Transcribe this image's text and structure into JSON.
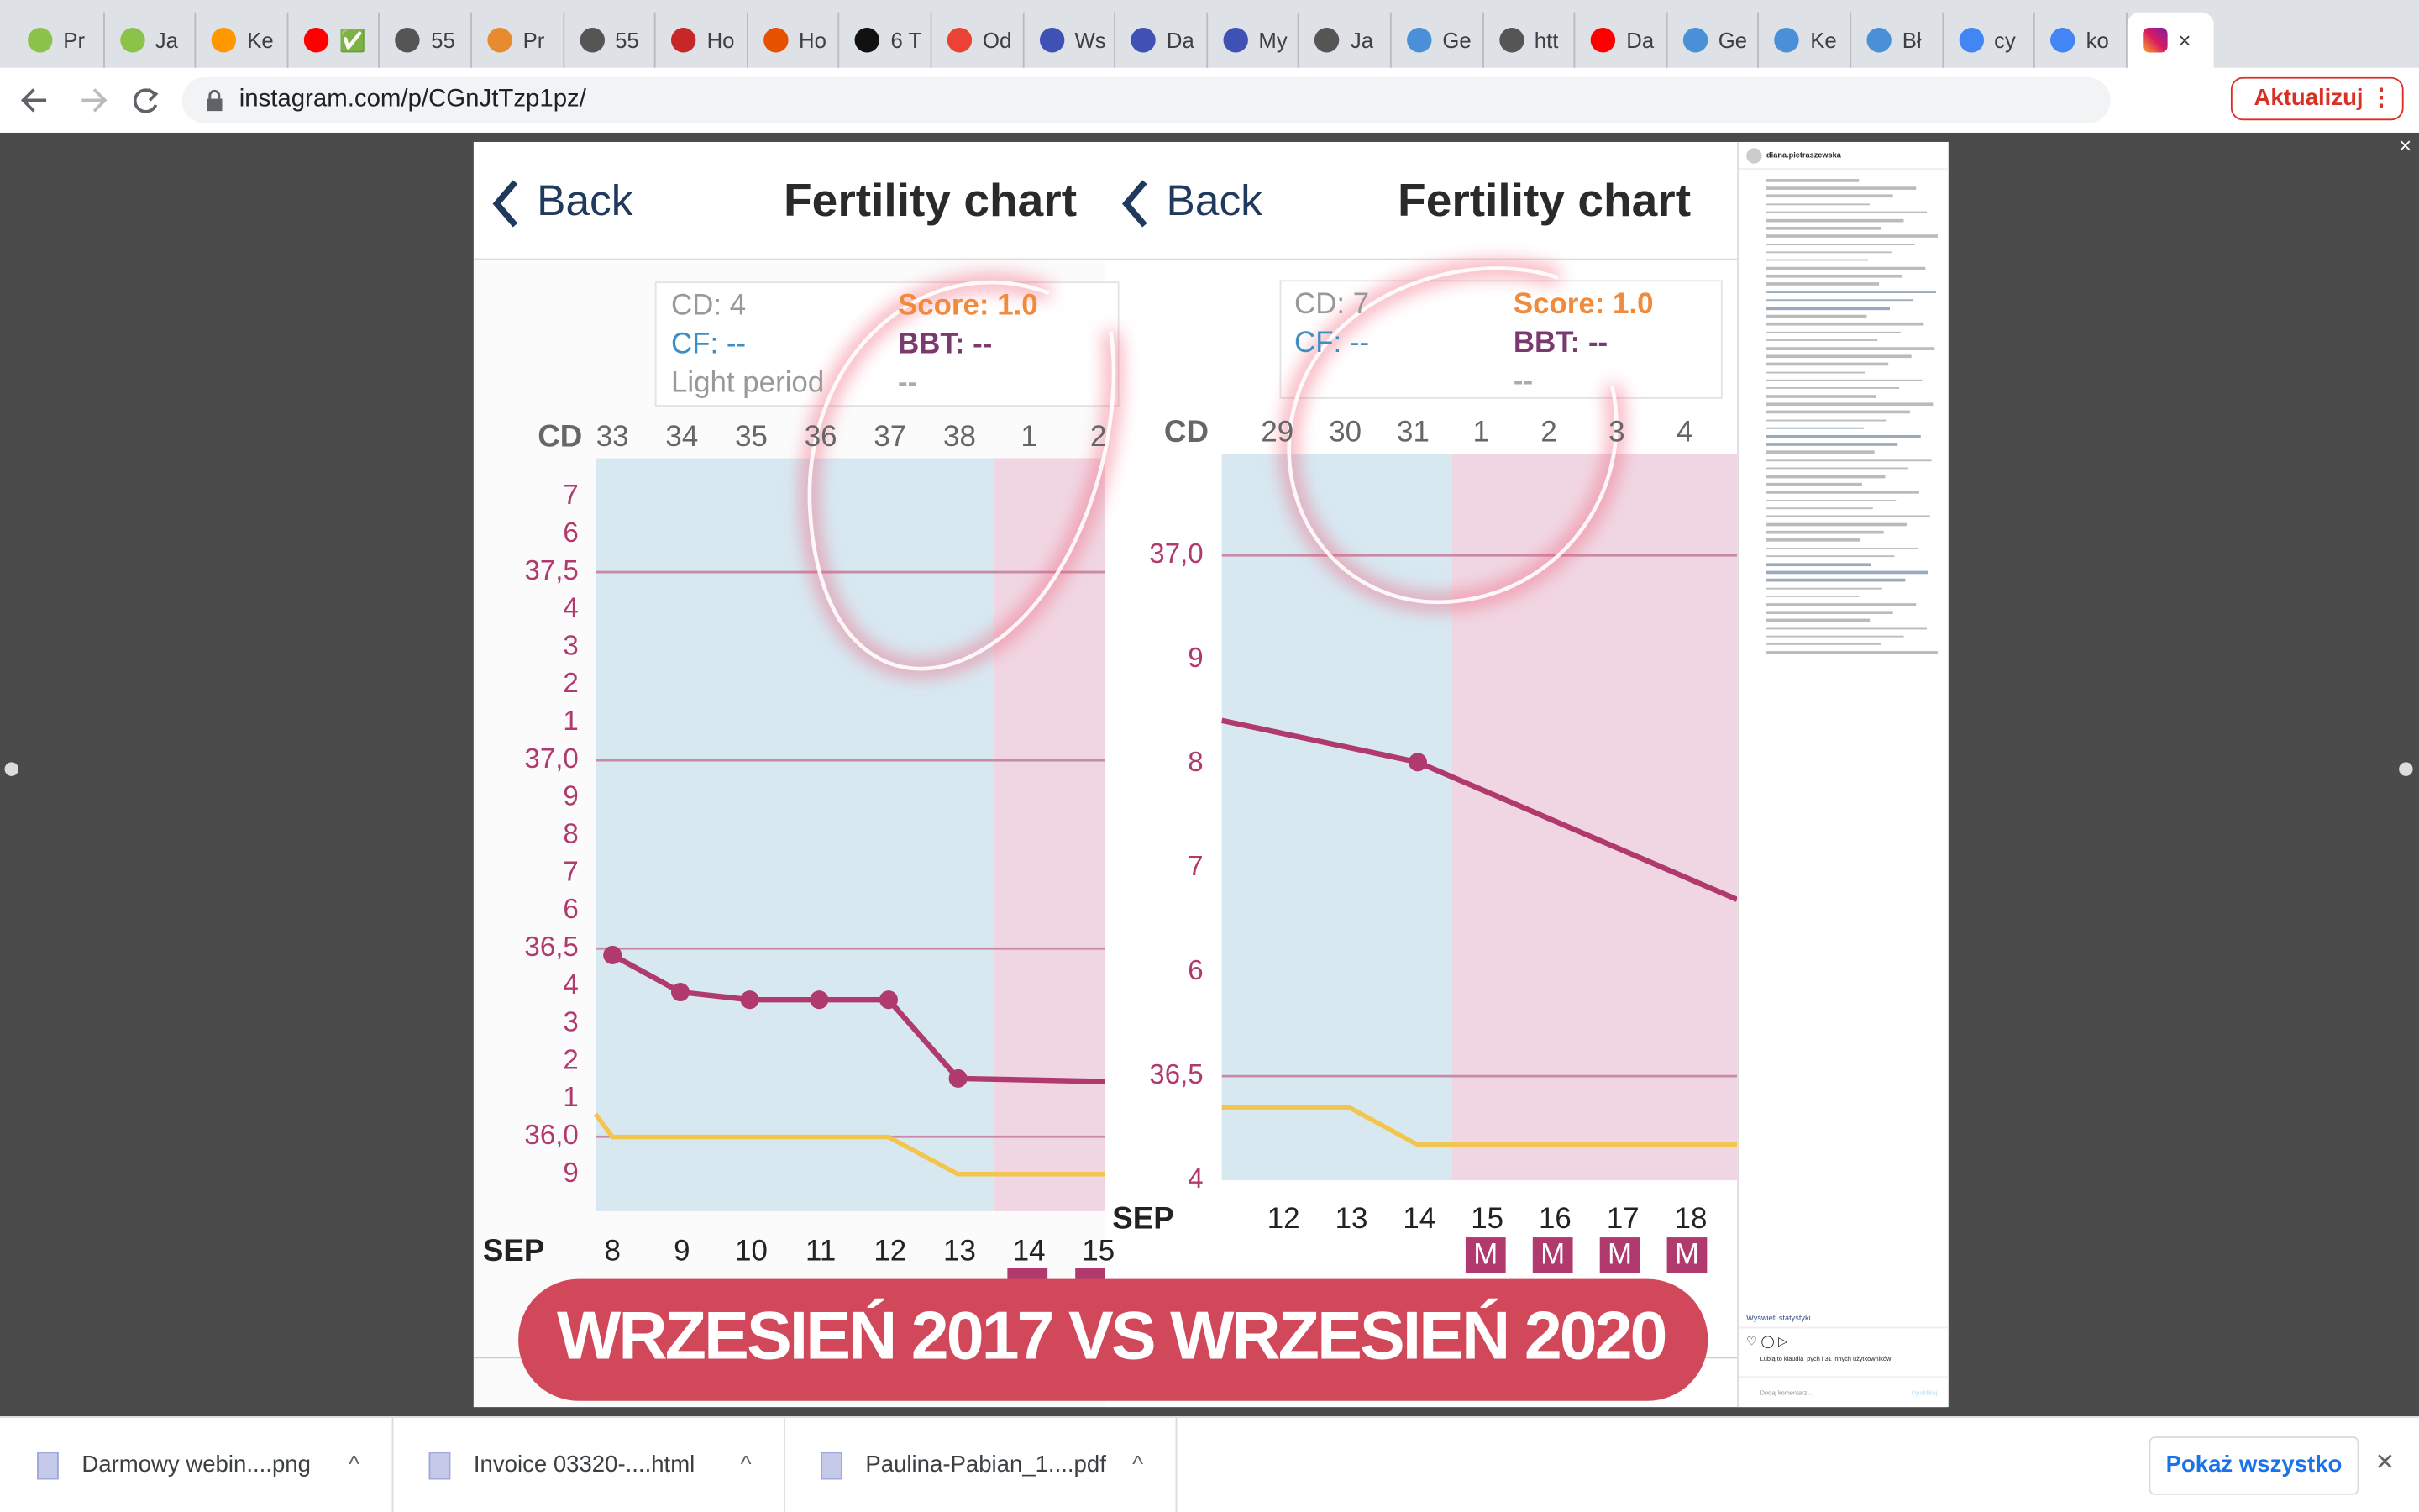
{
  "browser": {
    "tabs": [
      "Pr",
      "Ja",
      "Ke",
      "✅",
      "55",
      "Pr",
      "55",
      "Ho",
      "Ho",
      "6 T",
      "Od",
      "Ws",
      "Da",
      "My",
      "Ja",
      "Ge",
      "htt",
      "Da",
      "Ge",
      "Ke",
      "Bł",
      "cy",
      "ko"
    ],
    "url": "instagram.com/p/CGnJtTzp1pz/",
    "update_button": "Aktualizuj"
  },
  "post": {
    "left_panel": {
      "back": "Back",
      "title": "Fertility chart",
      "info": [
        "CD: 4",
        "CF: --",
        "Light period"
      ],
      "info_right": [
        "Score: 1.0",
        "BBT: --",
        "--"
      ],
      "cd_label": "CD",
      "cycle_days": [
        33,
        34,
        35,
        36,
        37,
        38,
        1,
        2
      ],
      "y_labels": [
        "7",
        "6",
        "37,5",
        "4",
        "3",
        "2",
        "1",
        "37,0",
        "9",
        "8",
        "7",
        "6",
        "36,5",
        "4",
        "3",
        "2",
        "1",
        "36,0",
        "9"
      ],
      "month": "SEP",
      "dates": [
        8,
        9,
        10,
        11,
        12,
        13,
        14,
        15
      ]
    },
    "right_panel": {
      "back": "Back",
      "title": "Fertility chart",
      "info": [
        "CD: 7",
        "CF: --"
      ],
      "info_right": [
        "Score: 1.0",
        "BBT: --",
        "--"
      ],
      "cd_label": "CD",
      "cycle_days": [
        29,
        30,
        31,
        1,
        2,
        3,
        4
      ],
      "y_labels": [
        "37,0",
        "9",
        "8",
        "7",
        "6",
        "36,5",
        "4"
      ],
      "month": "SEP",
      "dates": [
        12,
        13,
        14,
        15,
        16,
        17,
        18
      ],
      "markers": [
        "M",
        "M",
        "M",
        "M"
      ]
    },
    "banner": "WRZESIEŃ 2017 VS WRZESIEŃ 2020",
    "sidebar": {
      "username": "diana.pietraszewska",
      "stats": "Wyświetl statystyki",
      "likes": "Lubią to klaudia_pych i 31 innych użytkowników",
      "comment_placeholder": "Dodaj komentarz...",
      "publish": "Opublikuj"
    }
  },
  "downloads": {
    "items": [
      "Darmowy webin....png",
      "Invoice 03320-....html",
      "Paulina-Pabian_1....pdf"
    ],
    "show_all": "Pokaż wszystko"
  }
}
